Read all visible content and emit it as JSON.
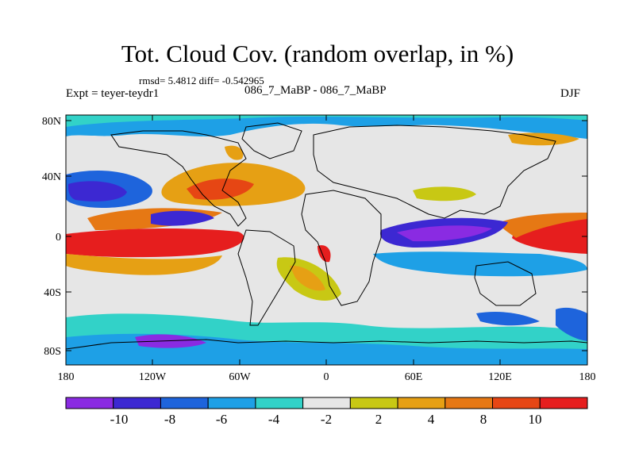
{
  "title": "Tot. Cloud Cov. (random overlap, in %)",
  "stats": "rmsd= 5.4812 diff= -0.542965",
  "left_label": "Expt = teyer-teydr1",
  "center_label": "086_7_MaBP - 086_7_MaBP",
  "right_label": "DJF",
  "map": {
    "lat_ticks": [
      "80N",
      "40N",
      "0",
      "40S",
      "80S"
    ],
    "lon_ticks": [
      "180",
      "120W",
      "60W",
      "0",
      "60E",
      "120E",
      "180"
    ],
    "colorbar": {
      "colors": [
        "#8a2be2",
        "#3c28d2",
        "#1e64dc",
        "#1ea0e6",
        "#32d2c8",
        "#e6e6e6",
        "#c8c814",
        "#e6a014",
        "#e67814",
        "#e64614",
        "#e61e1e"
      ],
      "labels": [
        "-10",
        "-8",
        "-6",
        "-4",
        "-2",
        "2",
        "4",
        "8",
        "10"
      ]
    }
  }
}
